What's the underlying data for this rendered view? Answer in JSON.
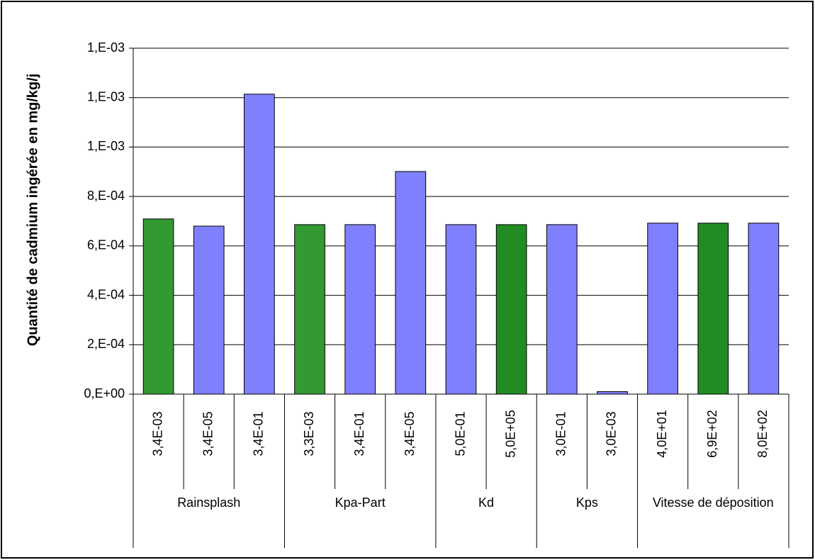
{
  "chart_data": {
    "type": "bar",
    "ylabel": "Quantité de cadmium ingérée en mg/kg/j",
    "ylim": [
      0,
      0.0014
    ],
    "yticks": [
      {
        "value": 0,
        "label": "0,E+00"
      },
      {
        "value": 0.0002,
        "label": "2,E-04"
      },
      {
        "value": 0.0004,
        "label": "4,E-04"
      },
      {
        "value": 0.0006,
        "label": "6,E-04"
      },
      {
        "value": 0.0008,
        "label": "8,E-04"
      },
      {
        "value": 0.001,
        "label": "1,E-03"
      },
      {
        "value": 0.0012,
        "label": "1,E-03"
      },
      {
        "value": 0.0014,
        "label": "1,E-03"
      }
    ],
    "grid": true,
    "groups": [
      {
        "name": "Rainsplash",
        "categories": [
          "3,4E-03",
          "3,4E-05",
          "3,4E-01"
        ],
        "values": [
          0.000709,
          0.00068,
          0.001214
        ],
        "colors": [
          "#339933",
          "#8080ff",
          "#8080ff"
        ]
      },
      {
        "name": "Kpa-Part",
        "categories": [
          "3,3E-03",
          "3,4E-01",
          "3,4E-05"
        ],
        "values": [
          0.000686,
          0.000686,
          0.000901
        ],
        "colors": [
          "#339933",
          "#8080ff",
          "#8080ff"
        ]
      },
      {
        "name": "Kd",
        "categories": [
          "5,0E-01",
          "5,0E+05"
        ],
        "values": [
          0.000686,
          0.000686
        ],
        "colors": [
          "#8080ff",
          "#228b22"
        ]
      },
      {
        "name": "Kps",
        "categories": [
          "3,0E-01",
          "3,0E-03"
        ],
        "values": [
          0.000686,
          1e-05
        ],
        "colors": [
          "#8080ff",
          "#8080ff"
        ]
      },
      {
        "name": "Vitesse de déposition",
        "categories": [
          "4,0E+01",
          "6,9E+02",
          "8,0E+02"
        ],
        "values": [
          0.000692,
          0.000692,
          0.000692
        ],
        "colors": [
          "#8080ff",
          "#228b22",
          "#8080ff"
        ]
      }
    ]
  }
}
